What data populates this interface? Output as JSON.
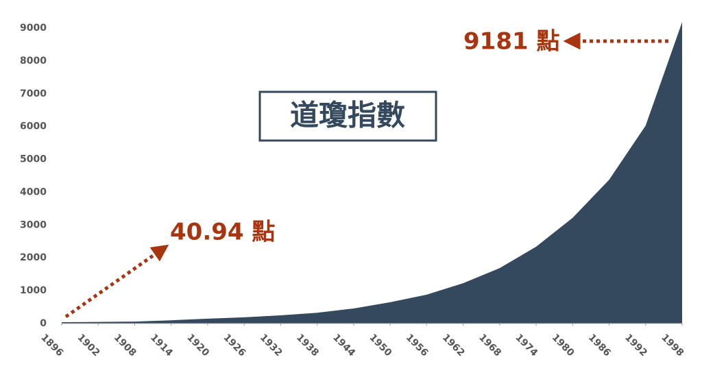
{
  "chart_data": {
    "type": "area",
    "title": "道瓊指數",
    "x": [
      1896,
      1902,
      1908,
      1914,
      1920,
      1926,
      1932,
      1938,
      1944,
      1950,
      1956,
      1962,
      1968,
      1974,
      1980,
      1986,
      1992,
      1998
    ],
    "values": [
      40.94,
      50,
      60,
      100,
      150,
      190,
      250,
      330,
      460,
      650,
      880,
      1230,
      1690,
      2340,
      3220,
      4380,
      6030,
      9181
    ],
    "color": "#34495e",
    "xlim": [
      1896,
      1998
    ],
    "xticks": [
      1896,
      1902,
      1908,
      1914,
      1920,
      1926,
      1932,
      1938,
      1944,
      1950,
      1956,
      1962,
      1968,
      1974,
      1980,
      1986,
      1992,
      1998
    ],
    "ylim": [
      0,
      9200
    ],
    "yticks": [
      0,
      1000,
      2000,
      3000,
      4000,
      5000,
      6000,
      7000,
      8000,
      9000
    ],
    "grid": false,
    "annotations": [
      "40.94 點",
      "9181 點"
    ],
    "annotation_color": "#a8350f"
  }
}
